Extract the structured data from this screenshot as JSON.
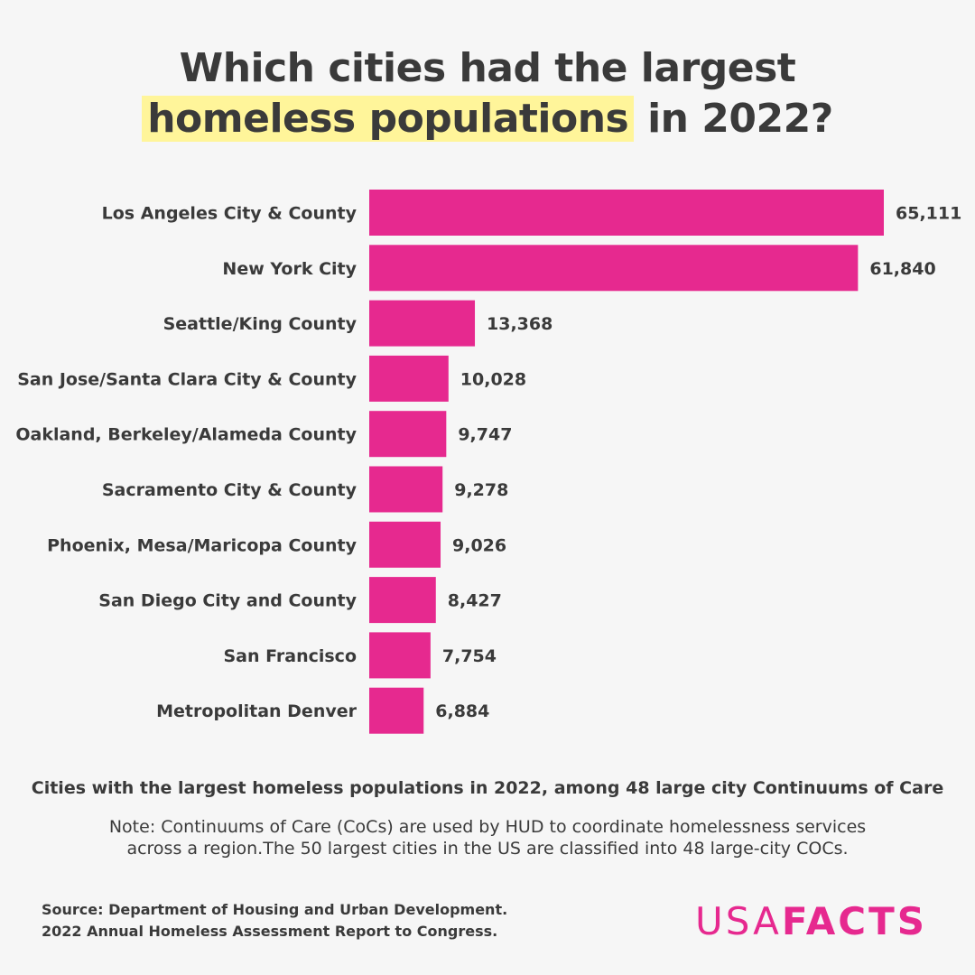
{
  "title": {
    "line1": "Which cities had the largest",
    "highlight": "homeless populations",
    "line2_rest": "in 2022?"
  },
  "colors": {
    "bar": "#e6298f",
    "highlight": "#fff59a",
    "text": "#3a3a3a",
    "logo": "#e6298f"
  },
  "chart_data": {
    "type": "bar",
    "orientation": "horizontal",
    "title": "Which cities had the largest homeless populations in 2022?",
    "categories": [
      "Los Angeles City & County",
      "New York City",
      "Seattle/King County",
      "San Jose/Santa Clara City & County",
      "Oakland, Berkeley/Alameda County",
      "Sacramento City & County",
      "Phoenix, Mesa/Maricopa County",
      "San Diego City and County",
      "San Francisco",
      "Metropolitan Denver"
    ],
    "values": [
      65111,
      61840,
      13368,
      10028,
      9747,
      9278,
      9026,
      8427,
      7754,
      6884
    ],
    "value_labels": [
      "65,111",
      "61,840",
      "13,368",
      "10,028",
      "9,747",
      "9,278",
      "9,026",
      "8,427",
      "7,754",
      "6,884"
    ],
    "xlim": [
      0,
      65111
    ],
    "xlabel": "",
    "ylabel": "",
    "grid": false,
    "legend": "none"
  },
  "caption": "Cities with the largest homeless populations in 2022, among 48 large city Continuums of Care",
  "note": {
    "line1": "Note: Continuums of Care (CoCs) are used by HUD to coordinate homelessness services",
    "line2": "across a region.The 50 largest cities in the US are classified into 48 large-city COCs."
  },
  "source": {
    "line1": "Source: Department of Housing and Urban Development.",
    "line2": "2022 Annual Homeless Assessment Report to Congress."
  },
  "logo": {
    "part1": "USA",
    "part2": "FACTS"
  }
}
